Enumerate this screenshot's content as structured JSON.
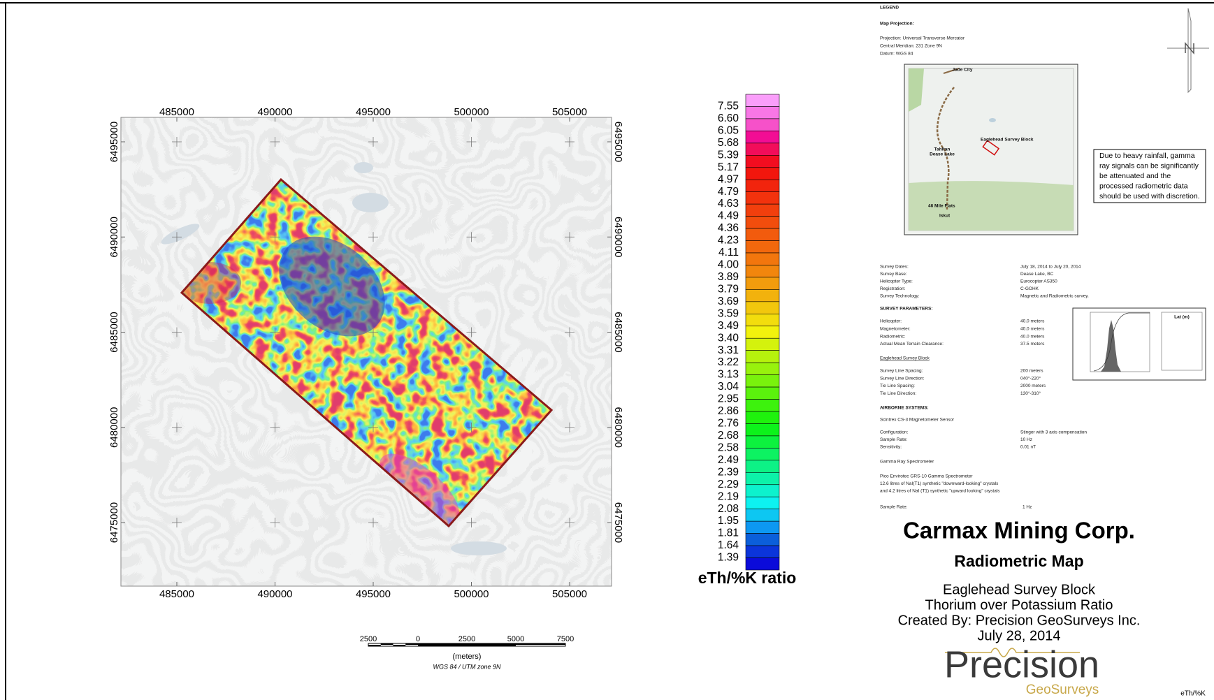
{
  "map": {
    "x_labels": [
      485000,
      490000,
      495000,
      500000,
      505000
    ],
    "y_labels": [
      6495000,
      6490000,
      6485000,
      6480000,
      6475000
    ]
  },
  "scale_bar": {
    "labels": [
      2500,
      0,
      2500,
      5000,
      7500
    ],
    "unit": "(meters)",
    "projection": "WGS 84 / UTM zone 9N"
  },
  "color_scale": {
    "title": "eTh/%K ratio",
    "labels": [
      "7.55",
      "6.60",
      "6.05",
      "5.68",
      "5.39",
      "5.17",
      "4.97",
      "4.79",
      "4.63",
      "4.49",
      "4.36",
      "4.23",
      "4.11",
      "4.00",
      "3.89",
      "3.79",
      "3.69",
      "3.59",
      "3.49",
      "3.40",
      "3.31",
      "3.22",
      "3.13",
      "3.04",
      "2.95",
      "2.86",
      "2.76",
      "2.68",
      "2.58",
      "2.49",
      "2.39",
      "2.29",
      "2.19",
      "2.08",
      "1.95",
      "1.81",
      "1.64",
      "1.39"
    ]
  },
  "legend": {
    "heading": "LEGEND",
    "projection_heading": "Map Projection:",
    "projection_lines": [
      "Projection: Universal Transverse Mercator",
      "Central Meridian: 231 Zone 9N",
      "Datum: WGS 84"
    ],
    "inset_labels": [
      "Jade City",
      "Eaglehead Survey Block",
      "Tahltan",
      "Dease Lake",
      "46 Mile Flats",
      "Iskut"
    ],
    "note": [
      "Due to heavy rainfall, gamma",
      "ray signals can be significantly",
      "be attenuated and the",
      "processed radiometric data",
      "should be used with discretion."
    ],
    "survey_info": [
      {
        "label": "Survey Dates:",
        "value": "July 18, 2014 to July 20, 2014"
      },
      {
        "label": "Survey Base:",
        "value": "Dease Lake, BC"
      },
      {
        "label": "Helicopter Type:",
        "value": "Eurocopter AS350"
      },
      {
        "label": "Registration:",
        "value": "C-GOHK"
      },
      {
        "label": "Survey Technology:",
        "value": "Magnetic and Radiometric survey."
      }
    ],
    "parameters_heading": "SURVEY PARAMETERS:",
    "parameters": [
      {
        "label": "Helicopter:",
        "value": "40.0 meters"
      },
      {
        "label": "Magnetometer:",
        "value": "40.0 meters"
      },
      {
        "label": "Radiometric:",
        "value": "40.0 meters"
      },
      {
        "label": "Actual Mean Terrain Clearance:",
        "value": "37.5 meters"
      }
    ],
    "block_heading": "Eaglehead Survey Block",
    "block": [
      {
        "label": "Survey Line Spacing:",
        "value": "200 meters"
      },
      {
        "label": "Survey Line Direction:",
        "value": "040°-220°"
      },
      {
        "label": "Tie Line Spacing:",
        "value": "2000 meters"
      },
      {
        "label": "Tie Line Direction:",
        "value": "130°-310°"
      }
    ],
    "airborne_heading": "AIRBORNE SYSTEMS:",
    "magnetometer": "Scintrex CS-3 Magnetometer Sensor",
    "magnetometer_specs": [
      {
        "label": "Configuration:",
        "value": "Stinger with 3 axis compensation"
      },
      {
        "label": "Sample Rate:",
        "value": "10 Hz"
      },
      {
        "label": "Sensitivity:",
        "value": "0.01 nT"
      }
    ],
    "spectrometer": "Gamma Ray Spectrometer",
    "spectrometer_lines": [
      "Pico Envirotec GRS-10 Gamma Spectrometer",
      "12.6 litres of NaI(T1) synthetic \"downward-looking\" crystals",
      "and 4.2 litres of NaI (T1) synthetic \"upward looking\" crystals"
    ],
    "sample_rate": {
      "label": "Sample Rate:",
      "value": "1 Hz"
    },
    "histogram_title": "Lat (m)"
  },
  "title_block": {
    "company": "Carmax Mining Corp.",
    "map_title": "Radiometric Map",
    "lines": [
      "Eaglehead Survey Block",
      "Thorium over Potassium Ratio",
      "Created By: Precision GeoSurveys Inc.",
      "July 28, 2014"
    ]
  },
  "logo": {
    "name": "Precision",
    "sub": "GeoSurveys"
  },
  "footer": "eTh/%K"
}
